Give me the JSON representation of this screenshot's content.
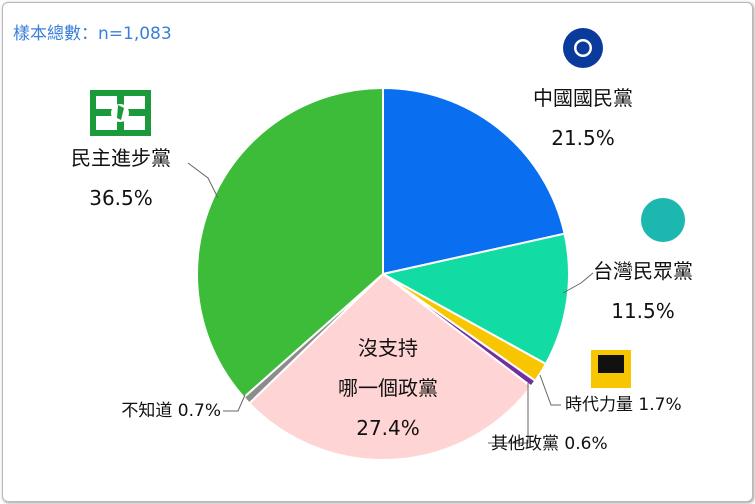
{
  "subtitle": "樣本總數：n=1,083",
  "chart_data": {
    "type": "pie",
    "categories": [
      "中國國民黨",
      "台灣民眾黨",
      "時代力量",
      "其他政黨",
      "沒支持\n哪一個政黨",
      "不知道",
      "民主進步黨"
    ],
    "values": [
      21.5,
      11.5,
      1.7,
      0.6,
      27.4,
      0.7,
      36.5
    ],
    "value_labels": [
      "21.5%",
      "11.5%",
      "1.7%",
      "0.6%",
      "27.4%",
      "0.7%",
      "36.5%"
    ],
    "colors": [
      "#0a6ef0",
      "#12dca4",
      "#f7c600",
      "#7030a0",
      "#ffd4d4",
      "#8c8c8c",
      "#3cbc38"
    ]
  }
}
